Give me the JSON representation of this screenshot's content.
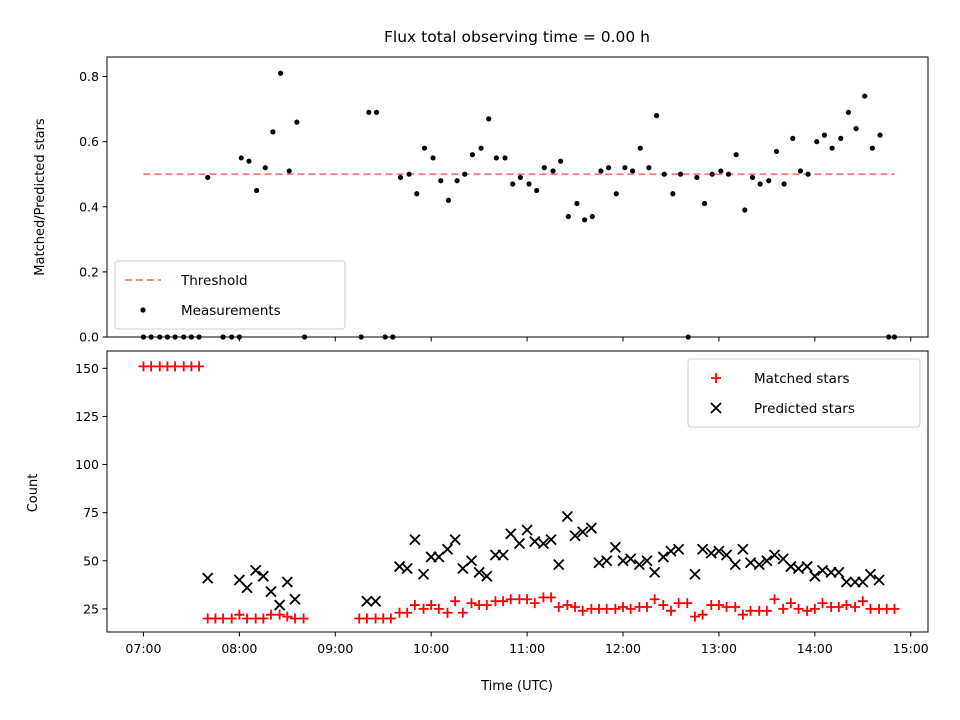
{
  "chart_data": [
    {
      "type": "scatter",
      "title": "Flux total observing time = 0.00 h",
      "xlabel": "",
      "ylabel": "Matched/Predicted stars",
      "xlim": [
        6.62,
        15.18
      ],
      "ylim": [
        0.0,
        0.86
      ],
      "yticks": [
        0.0,
        0.2,
        0.4,
        0.6,
        0.8
      ],
      "ytick_labels": [
        "0.0",
        "0.2",
        "0.4",
        "0.6",
        "0.8"
      ],
      "xticks": [
        8,
        9,
        10,
        11,
        12,
        13,
        14,
        15
      ],
      "legend": {
        "position": "lower-left",
        "entries": [
          {
            "label": "Threshold",
            "kind": "dashed-line",
            "color": "#f08080"
          },
          {
            "label": "Measurements",
            "kind": "dot",
            "color": "#000000"
          }
        ]
      },
      "threshold": {
        "name": "Threshold",
        "color": "#f08080",
        "y": 0.5,
        "x": [
          7.0,
          14.83
        ]
      },
      "series": [
        {
          "name": "Measurements",
          "color": "#000000",
          "points": [
            [
              7.0,
              0.0
            ],
            [
              7.08,
              0.0
            ],
            [
              7.17,
              0.0
            ],
            [
              7.25,
              0.0
            ],
            [
              7.33,
              0.0
            ],
            [
              7.42,
              0.0
            ],
            [
              7.5,
              0.0
            ],
            [
              7.58,
              0.0
            ],
            [
              7.67,
              0.49
            ],
            [
              7.83,
              0.0
            ],
            [
              7.92,
              0.0
            ],
            [
              8.0,
              0.0
            ],
            [
              8.02,
              0.55
            ],
            [
              8.1,
              0.54
            ],
            [
              8.18,
              0.45
            ],
            [
              8.27,
              0.52
            ],
            [
              8.35,
              0.63
            ],
            [
              8.43,
              0.81
            ],
            [
              8.52,
              0.51
            ],
            [
              8.6,
              0.66
            ],
            [
              8.68,
              0.0
            ],
            [
              9.27,
              0.0
            ],
            [
              9.35,
              0.69
            ],
            [
              9.43,
              0.69
            ],
            [
              9.52,
              0.0
            ],
            [
              9.6,
              0.0
            ],
            [
              9.68,
              0.49
            ],
            [
              9.77,
              0.5
            ],
            [
              9.85,
              0.44
            ],
            [
              9.93,
              0.58
            ],
            [
              10.02,
              0.55
            ],
            [
              10.1,
              0.48
            ],
            [
              10.18,
              0.42
            ],
            [
              10.27,
              0.48
            ],
            [
              10.35,
              0.5
            ],
            [
              10.43,
              0.56
            ],
            [
              10.52,
              0.58
            ],
            [
              10.6,
              0.67
            ],
            [
              10.68,
              0.55
            ],
            [
              10.77,
              0.55
            ],
            [
              10.85,
              0.47
            ],
            [
              10.93,
              0.49
            ],
            [
              11.02,
              0.47
            ],
            [
              11.1,
              0.45
            ],
            [
              11.18,
              0.52
            ],
            [
              11.27,
              0.51
            ],
            [
              11.35,
              0.54
            ],
            [
              11.43,
              0.37
            ],
            [
              11.52,
              0.41
            ],
            [
              11.6,
              0.36
            ],
            [
              11.68,
              0.37
            ],
            [
              11.77,
              0.51
            ],
            [
              11.85,
              0.52
            ],
            [
              11.93,
              0.44
            ],
            [
              12.02,
              0.52
            ],
            [
              12.1,
              0.51
            ],
            [
              12.18,
              0.58
            ],
            [
              12.27,
              0.52
            ],
            [
              12.35,
              0.68
            ],
            [
              12.43,
              0.5
            ],
            [
              12.52,
              0.44
            ],
            [
              12.6,
              0.5
            ],
            [
              12.68,
              0.0
            ],
            [
              12.77,
              0.49
            ],
            [
              12.85,
              0.41
            ],
            [
              12.93,
              0.5
            ],
            [
              13.02,
              0.51
            ],
            [
              13.1,
              0.5
            ],
            [
              13.18,
              0.56
            ],
            [
              13.27,
              0.39
            ],
            [
              13.35,
              0.49
            ],
            [
              13.43,
              0.47
            ],
            [
              13.52,
              0.48
            ],
            [
              13.6,
              0.57
            ],
            [
              13.68,
              0.47
            ],
            [
              13.77,
              0.61
            ],
            [
              13.85,
              0.51
            ],
            [
              13.93,
              0.5
            ],
            [
              14.02,
              0.6
            ],
            [
              14.1,
              0.62
            ],
            [
              14.18,
              0.58
            ],
            [
              14.27,
              0.61
            ],
            [
              14.35,
              0.69
            ],
            [
              14.43,
              0.64
            ],
            [
              14.52,
              0.74
            ],
            [
              14.6,
              0.58
            ],
            [
              14.68,
              0.62
            ],
            [
              14.77,
              0.0
            ],
            [
              14.83,
              0.0
            ]
          ]
        }
      ]
    },
    {
      "type": "scatter",
      "title": "",
      "xlabel": "Time (UTC)",
      "ylabel": "Count",
      "xlim": [
        6.62,
        15.18
      ],
      "ylim": [
        13,
        159
      ],
      "yticks": [
        25,
        50,
        75,
        100,
        125,
        150
      ],
      "ytick_labels": [
        "25",
        "50",
        "75",
        "100",
        "125",
        "150"
      ],
      "xticks": [
        7,
        8,
        9,
        10,
        11,
        12,
        13,
        14,
        15
      ],
      "xtick_labels": [
        "07:00",
        "08:00",
        "09:00",
        "10:00",
        "11:00",
        "12:00",
        "13:00",
        "14:00",
        "15:00"
      ],
      "legend": {
        "position": "upper-right",
        "entries": [
          {
            "label": "Matched stars",
            "kind": "plus",
            "color": "#ff0000"
          },
          {
            "label": "Predicted stars",
            "kind": "cross",
            "color": "#000000"
          }
        ]
      },
      "series": [
        {
          "name": "Matched stars",
          "color": "#ff0000",
          "marker": "plus",
          "points": [
            [
              7.0,
              151
            ],
            [
              7.08,
              151
            ],
            [
              7.17,
              151
            ],
            [
              7.25,
              151
            ],
            [
              7.33,
              151
            ],
            [
              7.42,
              151
            ],
            [
              7.5,
              151
            ],
            [
              7.58,
              151
            ],
            [
              7.67,
              20
            ],
            [
              7.75,
              20
            ],
            [
              7.83,
              20
            ],
            [
              7.92,
              20
            ],
            [
              8.0,
              22
            ],
            [
              8.08,
              20
            ],
            [
              8.17,
              20
            ],
            [
              8.25,
              20
            ],
            [
              8.33,
              22
            ],
            [
              8.42,
              22
            ],
            [
              8.5,
              21
            ],
            [
              8.58,
              20
            ],
            [
              8.67,
              20
            ],
            [
              9.25,
              20
            ],
            [
              9.33,
              20
            ],
            [
              9.42,
              20
            ],
            [
              9.5,
              20
            ],
            [
              9.58,
              20
            ],
            [
              9.67,
              23
            ],
            [
              9.75,
              23
            ],
            [
              9.83,
              27
            ],
            [
              9.92,
              25
            ],
            [
              10.0,
              27
            ],
            [
              10.08,
              25
            ],
            [
              10.17,
              23
            ],
            [
              10.25,
              29
            ],
            [
              10.33,
              23
            ],
            [
              10.42,
              28
            ],
            [
              10.5,
              27
            ],
            [
              10.58,
              27
            ],
            [
              10.67,
              29
            ],
            [
              10.75,
              29
            ],
            [
              10.83,
              30
            ],
            [
              10.92,
              30
            ],
            [
              11.0,
              30
            ],
            [
              11.08,
              28
            ],
            [
              11.17,
              31
            ],
            [
              11.25,
              31
            ],
            [
              11.33,
              26
            ],
            [
              11.42,
              27
            ],
            [
              11.5,
              26
            ],
            [
              11.58,
              24
            ],
            [
              11.67,
              25
            ],
            [
              11.75,
              25
            ],
            [
              11.83,
              25
            ],
            [
              11.92,
              25
            ],
            [
              12.0,
              26
            ],
            [
              12.08,
              25
            ],
            [
              12.17,
              26
            ],
            [
              12.25,
              26
            ],
            [
              12.33,
              30
            ],
            [
              12.42,
              27
            ],
            [
              12.5,
              24
            ],
            [
              12.58,
              28
            ],
            [
              12.67,
              28
            ],
            [
              12.75,
              21
            ],
            [
              12.83,
              22
            ],
            [
              12.92,
              27
            ],
            [
              13.0,
              27
            ],
            [
              13.08,
              26
            ],
            [
              13.17,
              26
            ],
            [
              13.25,
              22
            ],
            [
              13.33,
              24
            ],
            [
              13.42,
              24
            ],
            [
              13.5,
              24
            ],
            [
              13.58,
              30
            ],
            [
              13.67,
              25
            ],
            [
              13.75,
              28
            ],
            [
              13.83,
              25
            ],
            [
              13.92,
              24
            ],
            [
              14.0,
              25
            ],
            [
              14.08,
              28
            ],
            [
              14.17,
              26
            ],
            [
              14.25,
              26
            ],
            [
              14.33,
              27
            ],
            [
              14.42,
              26
            ],
            [
              14.5,
              29
            ],
            [
              14.58,
              25
            ],
            [
              14.67,
              25
            ],
            [
              14.75,
              25
            ],
            [
              14.83,
              25
            ]
          ]
        },
        {
          "name": "Predicted stars",
          "color": "#000000",
          "marker": "cross",
          "points": [
            [
              7.67,
              41
            ],
            [
              8.0,
              40
            ],
            [
              8.08,
              36
            ],
            [
              8.17,
              45
            ],
            [
              8.25,
              42
            ],
            [
              8.33,
              34
            ],
            [
              8.42,
              27
            ],
            [
              8.5,
              39
            ],
            [
              8.58,
              30
            ],
            [
              9.33,
              29
            ],
            [
              9.42,
              29
            ],
            [
              9.67,
              47
            ],
            [
              9.75,
              46
            ],
            [
              9.83,
              61
            ],
            [
              9.92,
              43
            ],
            [
              10.0,
              52
            ],
            [
              10.08,
              52
            ],
            [
              10.17,
              56
            ],
            [
              10.25,
              61
            ],
            [
              10.33,
              46
            ],
            [
              10.42,
              50
            ],
            [
              10.5,
              44
            ],
            [
              10.58,
              42
            ],
            [
              10.67,
              53
            ],
            [
              10.75,
              53
            ],
            [
              10.83,
              64
            ],
            [
              10.92,
              59
            ],
            [
              11.0,
              66
            ],
            [
              11.08,
              60
            ],
            [
              11.17,
              59
            ],
            [
              11.25,
              61
            ],
            [
              11.33,
              48
            ],
            [
              11.42,
              73
            ],
            [
              11.5,
              63
            ],
            [
              11.58,
              65
            ],
            [
              11.67,
              67
            ],
            [
              11.75,
              49
            ],
            [
              11.83,
              50
            ],
            [
              11.92,
              57
            ],
            [
              12.0,
              50
            ],
            [
              12.08,
              51
            ],
            [
              12.17,
              48
            ],
            [
              12.25,
              50
            ],
            [
              12.33,
              44
            ],
            [
              12.42,
              52
            ],
            [
              12.5,
              55
            ],
            [
              12.58,
              56
            ],
            [
              12.75,
              43
            ],
            [
              12.83,
              56
            ],
            [
              12.92,
              54
            ],
            [
              13.0,
              55
            ],
            [
              13.08,
              53
            ],
            [
              13.17,
              48
            ],
            [
              13.25,
              56
            ],
            [
              13.33,
              49
            ],
            [
              13.42,
              48
            ],
            [
              13.5,
              50
            ],
            [
              13.58,
              53
            ],
            [
              13.67,
              51
            ],
            [
              13.75,
              47
            ],
            [
              13.83,
              46
            ],
            [
              13.92,
              47
            ],
            [
              14.0,
              42
            ],
            [
              14.08,
              45
            ],
            [
              14.17,
              44
            ],
            [
              14.25,
              44
            ],
            [
              14.33,
              39
            ],
            [
              14.42,
              39
            ],
            [
              14.5,
              39
            ],
            [
              14.58,
              43
            ],
            [
              14.67,
              40
            ]
          ]
        }
      ]
    }
  ]
}
